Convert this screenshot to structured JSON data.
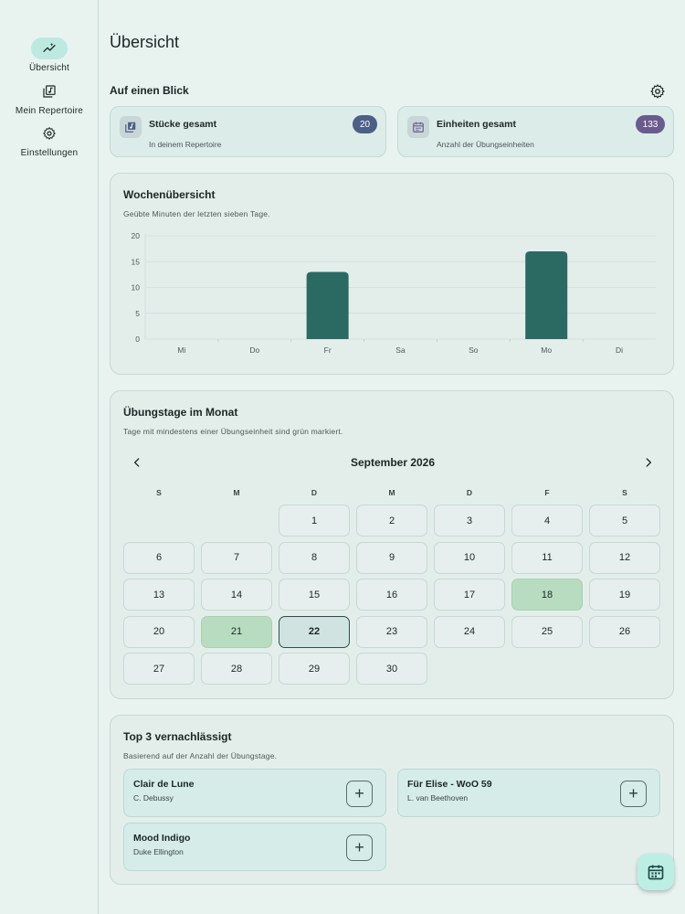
{
  "sidebar": {
    "items": [
      {
        "label": "Übersicht",
        "icon": "trend-chart-icon",
        "active": true
      },
      {
        "label": "Mein Repertoire",
        "icon": "library-music-icon",
        "active": false
      },
      {
        "label": "Einstellungen",
        "icon": "gear-icon",
        "active": false
      }
    ]
  },
  "page": {
    "title": "Übersicht"
  },
  "at_a_glance": {
    "title": "Auf einen Blick",
    "settings_icon": "gear-icon",
    "stats": [
      {
        "title": "Stücke gesamt",
        "subtitle": "In deinem Repertoire",
        "value": "20",
        "icon": "library-music-icon",
        "color": "#4c5f86"
      },
      {
        "title": "Einheiten gesamt",
        "subtitle": "Anzahl der Übungseinheiten",
        "value": "133",
        "icon": "calendar-icon",
        "color": "#6a5b8e"
      }
    ]
  },
  "weekly": {
    "title": "Wochenübersicht",
    "subtitle": "Geübte Minuten der letzten sieben Tage."
  },
  "chart_data": {
    "type": "bar",
    "categories": [
      "Mi",
      "Do",
      "Fr",
      "Sa",
      "So",
      "Mo",
      "Di"
    ],
    "values": [
      0,
      0,
      13,
      0,
      0,
      17,
      0
    ],
    "ylim": [
      0,
      20
    ],
    "yticks": [
      0,
      5,
      10,
      15,
      20
    ],
    "grid": true,
    "color": "#2b6a62"
  },
  "calendar": {
    "title": "Übungstage im Monat",
    "subtitle": "Tage mit mindestens einer Übungseinheit sind grün markiert.",
    "month": "September 2026",
    "weekdays": [
      "S",
      "M",
      "D",
      "M",
      "D",
      "F",
      "S"
    ],
    "first_weekday_index": 2,
    "days_in_month": 30,
    "practiced_days": [
      18,
      21
    ],
    "today": 22,
    "practiced_color": "#b8dcc0"
  },
  "neglected": {
    "title": "Top 3 vernachlässigt",
    "subtitle": "Basierend auf der Anzahl der Übungstage.",
    "items": [
      {
        "title": "Clair de Lune",
        "composer": "C. Debussy"
      },
      {
        "title": "Für Elise - WoO 59",
        "composer": "L. van Beethoven"
      },
      {
        "title": "Mood Indigo",
        "composer": "Duke Ellington"
      }
    ],
    "add_label": "+"
  },
  "fab": {
    "icon": "calendar-icon"
  }
}
